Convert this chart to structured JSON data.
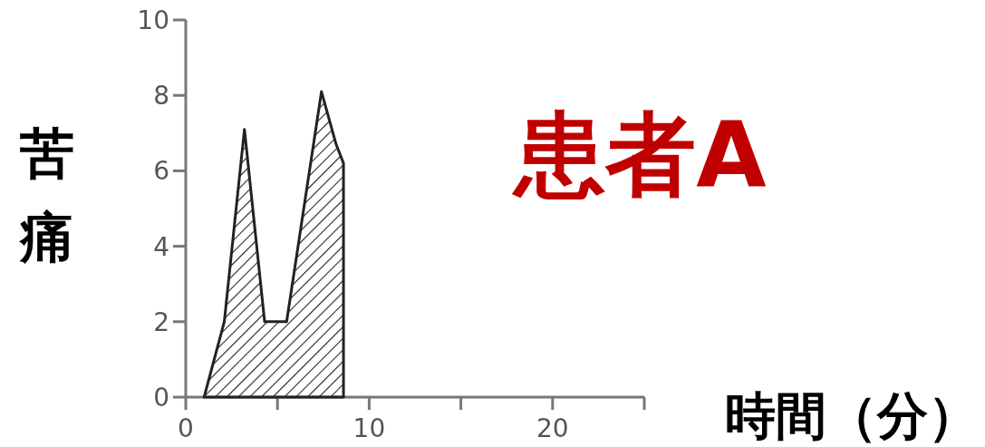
{
  "chart_data": {
    "type": "area",
    "title": "患者A",
    "xlabel": "時間（分）",
    "ylabel": "苦痛",
    "x": [
      1.0,
      2.1,
      3.2,
      4.3,
      5.5,
      7.4,
      8.2,
      8.6,
      8.6
    ],
    "values": [
      0,
      2,
      7.1,
      2,
      2,
      8.1,
      6.7,
      6.2,
      0
    ],
    "color": "#222222",
    "xlim": [
      0,
      25
    ],
    "ylim": [
      0,
      10
    ],
    "xticks": [
      0,
      {
        "value": 5,
        "label": null
      },
      10,
      {
        "value": 15,
        "label": null
      },
      20,
      {
        "value": 25,
        "label": null
      }
    ],
    "yticks": [
      0,
      2,
      4,
      6,
      8,
      10
    ]
  }
}
